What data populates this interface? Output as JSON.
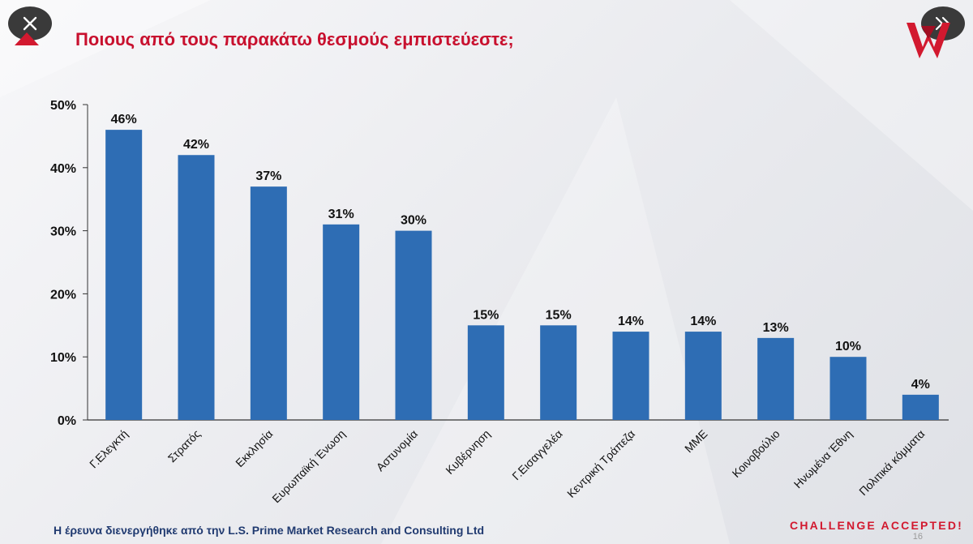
{
  "title": "Ποιους από τους παρακάτω θεσμούς εμπιστεύεστε;",
  "footer_text": "Η έρευνα διενεργήθηκε από την L.S. Prime Market Research and Consulting Ltd",
  "tagline": "CHALLENGE ACCEPTED!",
  "page_number": "16",
  "icons": {
    "close": "close-icon",
    "next": "double-chevron-right-icon",
    "logo": "brand-logo-icon"
  },
  "colors": {
    "bar": "#2e6db4",
    "title": "#c8102e",
    "footer": "#203a70",
    "tagline": "#d2192f"
  },
  "chart_data": {
    "type": "bar",
    "title": "Ποιους από τους παρακάτω θεσμούς εμπιστεύεστε;",
    "xlabel": "",
    "ylabel": "",
    "categories": [
      "Γ.Ελεγκτή",
      "Στρατός",
      "Εκκλησία",
      "Ευρωπαϊκή Ένωση",
      "Αστυνομία",
      "Κυβέρνηση",
      "Γ.Εισαγγελέα",
      "Κεντρική Τράπεζα",
      "ΜΜΕ",
      "Κοινοβούλιο",
      "Ηνωμένα Έθνη",
      "Πολιτικά κόμματα"
    ],
    "values": [
      46,
      42,
      37,
      31,
      30,
      15,
      15,
      14,
      14,
      13,
      10,
      4
    ],
    "value_labels": [
      "46%",
      "42%",
      "37%",
      "31%",
      "30%",
      "15%",
      "15%",
      "14%",
      "14%",
      "13%",
      "10%",
      "4%"
    ],
    "ylim": [
      0,
      50
    ],
    "yticks": [
      0,
      10,
      20,
      30,
      40,
      50
    ],
    "ytick_labels": [
      "0%",
      "10%",
      "20%",
      "30%",
      "40%",
      "50%"
    ],
    "grid": false,
    "legend": "none"
  }
}
